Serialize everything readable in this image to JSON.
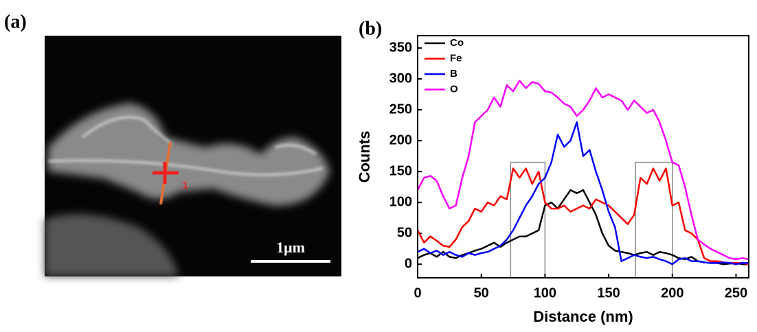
{
  "figure": {
    "panel_labels": [
      "(a)",
      "(b)"
    ],
    "scale_bar": "1μm",
    "marker_label": "1"
  },
  "chart_data": {
    "type": "line",
    "xlabel": "Distance (nm)",
    "ylabel": "Counts",
    "xlim": [
      0,
      260
    ],
    "ylim": [
      -22,
      370
    ],
    "xticks": [
      0,
      50,
      100,
      150,
      200,
      250
    ],
    "yticks": [
      0,
      50,
      100,
      150,
      200,
      250,
      300,
      350
    ],
    "legend": "upper left",
    "highlight_regions": [
      {
        "x0": 73,
        "x1": 100,
        "top": 165
      },
      {
        "x0": 171,
        "x1": 200,
        "top": 165
      }
    ],
    "x": [
      0,
      5,
      10,
      15,
      20,
      25,
      30,
      35,
      40,
      45,
      50,
      55,
      60,
      65,
      70,
      75,
      80,
      85,
      90,
      95,
      100,
      105,
      110,
      115,
      120,
      125,
      130,
      135,
      140,
      145,
      150,
      155,
      160,
      165,
      170,
      175,
      180,
      185,
      190,
      195,
      200,
      205,
      210,
      215,
      220,
      225,
      230,
      235,
      240,
      245,
      250,
      255,
      260
    ],
    "series": [
      {
        "name": "Co",
        "color": "#000000",
        "values": [
          10,
          15,
          18,
          12,
          20,
          12,
          10,
          15,
          18,
          22,
          25,
          30,
          35,
          28,
          35,
          40,
          45,
          45,
          50,
          55,
          95,
          100,
          90,
          105,
          120,
          115,
          120,
          100,
          80,
          50,
          30,
          22,
          20,
          18,
          15,
          18,
          20,
          15,
          20,
          18,
          15,
          10,
          8,
          12,
          5,
          3,
          2,
          2,
          0,
          1,
          2,
          0,
          0
        ]
      },
      {
        "name": "Fe",
        "color": "#ff0000",
        "values": [
          55,
          35,
          45,
          38,
          30,
          28,
          40,
          60,
          70,
          90,
          85,
          100,
          95,
          110,
          105,
          155,
          140,
          155,
          130,
          150,
          100,
          90,
          90,
          95,
          85,
          90,
          95,
          90,
          105,
          100,
          95,
          85,
          75,
          65,
          80,
          140,
          130,
          155,
          135,
          155,
          95,
          100,
          55,
          50,
          40,
          10,
          5,
          5,
          3,
          2,
          2,
          2,
          0
        ]
      },
      {
        "name": "B",
        "color": "#0000ff",
        "values": [
          20,
          25,
          18,
          22,
          15,
          20,
          15,
          12,
          18,
          15,
          18,
          20,
          25,
          30,
          40,
          55,
          75,
          95,
          110,
          130,
          140,
          165,
          210,
          190,
          200,
          230,
          175,
          185,
          150,
          120,
          85,
          60,
          5,
          10,
          15,
          12,
          10,
          12,
          8,
          5,
          0,
          8,
          10,
          5,
          5,
          3,
          2,
          2,
          3,
          2,
          0,
          2,
          2
        ]
      },
      {
        "name": "O",
        "color": "#ff00ff",
        "values": [
          120,
          140,
          143,
          135,
          110,
          90,
          95,
          140,
          175,
          230,
          240,
          250,
          270,
          255,
          290,
          280,
          297,
          285,
          295,
          292,
          280,
          278,
          270,
          260,
          255,
          240,
          250,
          265,
          285,
          270,
          275,
          270,
          265,
          250,
          265,
          255,
          245,
          250,
          230,
          200,
          165,
          160,
          125,
          80,
          40,
          32,
          25,
          20,
          15,
          10,
          8,
          10,
          8
        ]
      }
    ]
  }
}
